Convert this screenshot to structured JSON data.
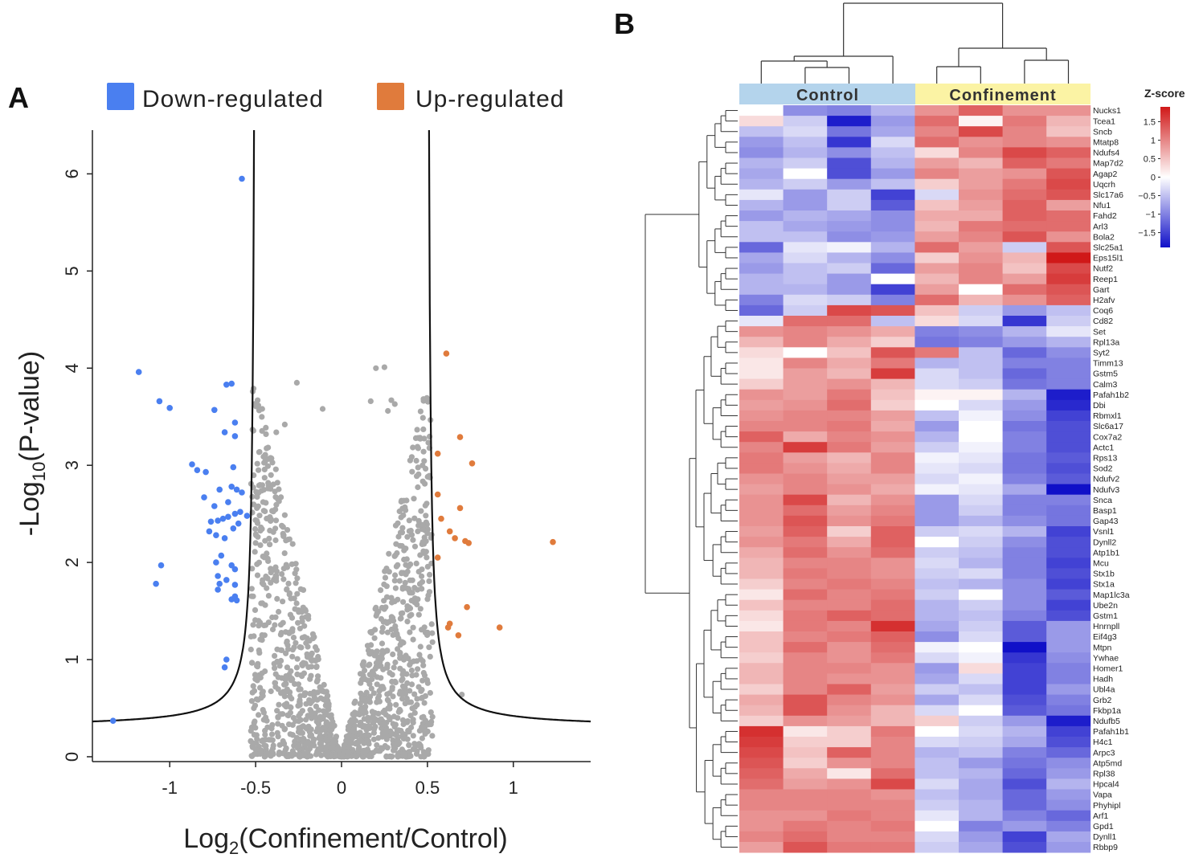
{
  "figure": {
    "panel_a": "A",
    "panel_b": "B"
  },
  "colors": {
    "down": "#4a7ff0",
    "up": "#e07b3c",
    "ns": "#a9a9a9",
    "control_bar": "#b4d4ec",
    "confinement_bar": "#fbf3a4"
  },
  "chart_data": [
    {
      "type": "scatter",
      "subtype": "volcano",
      "xlabel_prefix": "Log",
      "xlabel_sub": "2",
      "xlabel_rest": "(Confinement/Control)",
      "ylabel_prefix": "-Log",
      "ylabel_sub": "10",
      "ylabel_rest": "(P-value)",
      "xlim": [
        -1.45,
        1.45
      ],
      "ylim": [
        -0.05,
        6.45
      ],
      "x_ticks": [
        {
          "v": -1,
          "label": "-1"
        },
        {
          "v": -0.5,
          "label": "-0.5"
        },
        {
          "v": 0,
          "label": "0"
        },
        {
          "v": 0.5,
          "label": "0.5"
        },
        {
          "v": 1,
          "label": "1"
        }
      ],
      "y_ticks": [
        {
          "v": 0,
          "label": "0"
        },
        {
          "v": 1,
          "label": "1"
        },
        {
          "v": 2,
          "label": "2"
        },
        {
          "v": 3,
          "label": "3"
        },
        {
          "v": 4,
          "label": "4"
        },
        {
          "v": 5,
          "label": "5"
        },
        {
          "v": 6,
          "label": "6"
        }
      ],
      "legend": [
        {
          "label": "Down-regulated",
          "color": "#4a7ff0"
        },
        {
          "label": "Up-regulated",
          "color": "#e07b3c"
        }
      ],
      "threshold_curve": {
        "x0": 0.5,
        "c": 0.06,
        "floor": 0.3
      },
      "series": [
        {
          "name": "Down-regulated",
          "color": "#4a7ff0",
          "points": [
            [
              -0.58,
              5.95
            ],
            [
              -1.18,
              3.96
            ],
            [
              -1.06,
              3.66
            ],
            [
              -1.0,
              3.59
            ],
            [
              -0.64,
              3.84
            ],
            [
              -0.67,
              3.83
            ],
            [
              -0.74,
              3.57
            ],
            [
              -0.68,
              3.34
            ],
            [
              -0.62,
              3.44
            ],
            [
              -0.62,
              3.3
            ],
            [
              -0.87,
              3.01
            ],
            [
              -0.84,
              2.95
            ],
            [
              -0.79,
              2.93
            ],
            [
              -0.63,
              2.98
            ],
            [
              -0.71,
              2.75
            ],
            [
              -0.64,
              2.78
            ],
            [
              -0.61,
              2.75
            ],
            [
              -0.66,
              2.62
            ],
            [
              -0.74,
              2.58
            ],
            [
              -0.8,
              2.67
            ],
            [
              -0.58,
              2.72
            ],
            [
              -0.76,
              2.42
            ],
            [
              -0.72,
              2.43
            ],
            [
              -0.69,
              2.45
            ],
            [
              -0.66,
              2.47
            ],
            [
              -0.62,
              2.5
            ],
            [
              -0.59,
              2.52
            ],
            [
              -0.63,
              2.35
            ],
            [
              -0.68,
              2.25
            ],
            [
              -0.73,
              2.28
            ],
            [
              -0.77,
              2.32
            ],
            [
              -0.6,
              2.4
            ],
            [
              -0.55,
              2.48
            ],
            [
              -0.73,
              2.0
            ],
            [
              -0.7,
              2.07
            ],
            [
              -0.64,
              1.97
            ],
            [
              -0.62,
              1.93
            ],
            [
              -0.72,
              1.86
            ],
            [
              -0.67,
              1.82
            ],
            [
              -0.71,
              1.78
            ],
            [
              -0.62,
              1.77
            ],
            [
              -0.61,
              1.61
            ],
            [
              -0.64,
              1.62
            ],
            [
              -0.72,
              1.72
            ],
            [
              -1.05,
              1.97
            ],
            [
              -1.08,
              1.78
            ],
            [
              -0.67,
              1.0
            ],
            [
              -0.68,
              0.92
            ],
            [
              -1.33,
              0.37
            ],
            [
              -0.62,
              1.65
            ]
          ]
        },
        {
          "name": "Up-regulated",
          "color": "#e07b3c",
          "points": [
            [
              0.61,
              4.15
            ],
            [
              0.69,
              3.29
            ],
            [
              0.56,
              3.12
            ],
            [
              0.76,
              3.02
            ],
            [
              0.56,
              2.7
            ],
            [
              0.69,
              2.56
            ],
            [
              0.58,
              2.45
            ],
            [
              0.63,
              2.32
            ],
            [
              0.66,
              2.25
            ],
            [
              0.72,
              2.22
            ],
            [
              0.74,
              2.2
            ],
            [
              0.56,
              2.05
            ],
            [
              0.73,
              1.54
            ],
            [
              0.63,
              1.37
            ],
            [
              0.62,
              1.33
            ],
            [
              0.68,
              1.25
            ],
            [
              0.92,
              1.33
            ],
            [
              1.23,
              2.21
            ]
          ]
        }
      ],
      "ns_count": 1350,
      "ns_seed": 7
    },
    {
      "type": "heatmap",
      "groups": [
        {
          "label": "Control",
          "color": "#b4d4ec",
          "n": 4
        },
        {
          "label": "Confinement",
          "color": "#fbf3a4",
          "n": 4
        }
      ],
      "genes": [
        "Nucks1",
        "Tcea1",
        "Sncb",
        "Mtatp8",
        "Ndufs4",
        "Map7d2",
        "Agap2",
        "Uqcrh",
        "Slc17a6",
        "Nfu1",
        "Fahd2",
        "Arl3",
        "Bola2",
        "Slc25a1",
        "Eps15l1",
        "Nutf2",
        "Reep1",
        "Gart",
        "H2afv",
        "Coq6",
        "Cd82",
        "Set",
        "Rpl13a",
        "Syt2",
        "Timm13",
        "Gstm5",
        "Calm3",
        "Pafah1b2",
        "Dbi",
        "Rbmxl1",
        "Slc6a17",
        "Cox7a2",
        "Actc1",
        "Rps13",
        "Sod2",
        "Ndufv2",
        "Ndufv3",
        "Snca",
        "Basp1",
        "Gap43",
        "Vsnl1",
        "Dynll2",
        "Atp1b1",
        "Mcu",
        "Stx1b",
        "Stx1a",
        "Map1lc3a",
        "Ube2n",
        "Gstm1",
        "Hnrnpll",
        "Eif4g3",
        "Mtpn",
        "Ywhae",
        "Homer1",
        "Hadh",
        "Ubl4a",
        "Grb2",
        "Fkbp1a",
        "Ndufb5",
        "Pafah1b1",
        "H4c1",
        "Arpc3",
        "Atp5md",
        "Rpl38",
        "Hpcal4",
        "Vapa",
        "Phyhipl",
        "Arf1",
        "Gpd1",
        "Dynll1",
        "Rbbp9"
      ],
      "values": [
        [
          0.0,
          -0.9,
          -1.0,
          -0.6,
          0.9,
          1.3,
          0.9,
          0.9
        ],
        [
          0.3,
          -0.4,
          -1.8,
          -0.8,
          1.2,
          0.1,
          1.1,
          0.6
        ],
        [
          -0.5,
          -0.3,
          -1.1,
          -0.7,
          1.0,
          1.5,
          1.0,
          0.5
        ],
        [
          -0.8,
          -0.5,
          -1.6,
          -0.3,
          1.2,
          0.9,
          1.0,
          0.9
        ],
        [
          -0.9,
          -0.6,
          -0.9,
          -0.5,
          0.3,
          1.0,
          1.5,
          1.3
        ],
        [
          -0.6,
          -0.4,
          -1.4,
          -0.6,
          0.8,
          0.6,
          1.3,
          1.1
        ],
        [
          -0.7,
          0.0,
          -1.4,
          -0.8,
          1.0,
          0.8,
          0.9,
          1.4
        ],
        [
          -0.6,
          -0.4,
          -0.8,
          -0.5,
          0.4,
          0.8,
          1.1,
          1.5
        ],
        [
          -0.2,
          -0.8,
          -0.4,
          -1.5,
          -0.3,
          0.9,
          1.2,
          1.4
        ],
        [
          -0.6,
          -0.8,
          -0.4,
          -1.3,
          0.5,
          0.8,
          1.3,
          0.8
        ],
        [
          -0.8,
          -0.6,
          -0.7,
          -0.9,
          0.7,
          0.7,
          1.3,
          1.2
        ],
        [
          -0.5,
          -0.7,
          -0.8,
          -0.9,
          0.6,
          1.1,
          1.2,
          1.2
        ],
        [
          -0.5,
          -0.5,
          -0.9,
          -0.8,
          0.8,
          1.0,
          1.4,
          0.9
        ],
        [
          -1.2,
          -0.2,
          -0.1,
          -0.6,
          1.2,
          0.8,
          -0.4,
          1.4
        ],
        [
          -0.7,
          -0.3,
          -0.6,
          -0.9,
          0.4,
          0.9,
          0.6,
          1.9
        ],
        [
          -0.8,
          -0.5,
          -0.4,
          -1.2,
          0.8,
          1.0,
          0.5,
          1.5
        ],
        [
          -0.6,
          -0.5,
          -0.8,
          0.0,
          0.6,
          1.0,
          0.8,
          1.6
        ],
        [
          -0.6,
          -0.6,
          -0.8,
          -1.5,
          0.8,
          0.0,
          1.2,
          1.4
        ],
        [
          -1.0,
          -0.3,
          -0.4,
          -1.0,
          1.2,
          0.6,
          0.9,
          1.3
        ],
        [
          -1.2,
          -0.4,
          1.5,
          1.4,
          0.5,
          -0.4,
          -0.8,
          -0.5
        ],
        [
          -0.2,
          1.2,
          1.2,
          -0.5,
          0.3,
          -0.3,
          -1.6,
          -0.4
        ],
        [
          0.9,
          1.0,
          0.9,
          0.7,
          -1.0,
          -0.9,
          -0.6,
          -0.2
        ],
        [
          0.6,
          1.0,
          0.7,
          0.4,
          -1.1,
          -1.0,
          -0.8,
          -0.6
        ],
        [
          0.3,
          0.0,
          0.5,
          1.4,
          1.1,
          -0.5,
          -1.2,
          -0.9
        ],
        [
          0.2,
          1.0,
          0.7,
          1.1,
          -0.6,
          -0.5,
          -1.0,
          -1.0
        ],
        [
          0.2,
          0.8,
          0.6,
          1.6,
          -0.3,
          -0.5,
          -1.2,
          -1.0
        ],
        [
          0.4,
          0.8,
          0.9,
          0.6,
          -0.3,
          -0.4,
          -1.1,
          -1.0
        ],
        [
          0.9,
          0.8,
          1.1,
          0.5,
          0.1,
          0.1,
          -0.6,
          -1.8
        ],
        [
          0.8,
          0.9,
          1.2,
          0.4,
          0.0,
          -0.3,
          -0.8,
          -1.7
        ],
        [
          0.9,
          1.0,
          1.0,
          0.8,
          -0.5,
          -0.1,
          -0.9,
          -1.5
        ],
        [
          1.0,
          1.0,
          1.1,
          0.7,
          -0.8,
          0.0,
          -1.1,
          -1.4
        ],
        [
          1.3,
          0.7,
          1.0,
          0.9,
          -0.6,
          0.0,
          -1.0,
          -1.4
        ],
        [
          1.0,
          1.6,
          1.1,
          0.8,
          -0.4,
          -0.1,
          -1.0,
          -1.4
        ],
        [
          1.1,
          0.8,
          0.6,
          1.0,
          -0.1,
          -0.2,
          -1.1,
          -1.3
        ],
        [
          1.1,
          0.9,
          0.7,
          1.0,
          -0.2,
          -0.3,
          -1.1,
          -1.4
        ],
        [
          0.9,
          1.0,
          0.8,
          0.8,
          -0.3,
          -0.1,
          -1.0,
          -1.3
        ],
        [
          0.8,
          1.0,
          0.9,
          0.7,
          -0.1,
          -0.2,
          -0.7,
          -1.9
        ],
        [
          0.9,
          1.5,
          0.6,
          0.9,
          -0.8,
          -0.3,
          -1.0,
          -1.0
        ],
        [
          0.9,
          1.2,
          0.8,
          1.0,
          -0.8,
          -0.4,
          -1.0,
          -1.1
        ],
        [
          0.9,
          1.4,
          0.9,
          1.1,
          -0.8,
          -0.6,
          -0.9,
          -1.1
        ],
        [
          0.8,
          1.3,
          0.4,
          1.3,
          -0.4,
          -0.3,
          -0.6,
          -1.5
        ],
        [
          0.9,
          1.1,
          0.7,
          1.3,
          0.0,
          -0.4,
          -0.9,
          -1.4
        ],
        [
          0.7,
          1.2,
          0.9,
          1.2,
          -0.4,
          -0.5,
          -1.0,
          -1.4
        ],
        [
          0.6,
          1.0,
          1.0,
          0.9,
          -0.3,
          -0.6,
          -1.0,
          -1.5
        ],
        [
          0.6,
          1.1,
          1.0,
          0.9,
          -0.4,
          -0.3,
          -1.0,
          -1.4
        ],
        [
          0.4,
          1.0,
          1.1,
          1.0,
          -0.5,
          -0.6,
          -0.9,
          -1.5
        ],
        [
          0.2,
          1.2,
          1.0,
          1.1,
          -0.4,
          0.0,
          -0.9,
          -1.3
        ],
        [
          0.5,
          1.0,
          1.0,
          1.2,
          -0.6,
          -0.4,
          -0.9,
          -1.5
        ],
        [
          0.3,
          1.1,
          1.3,
          1.2,
          -0.6,
          -0.5,
          -1.0,
          -1.4
        ],
        [
          0.2,
          1.1,
          1.0,
          1.7,
          -0.7,
          -0.4,
          -1.3,
          -0.8
        ],
        [
          0.5,
          1.0,
          1.1,
          1.3,
          -0.9,
          -0.3,
          -1.3,
          -0.8
        ],
        [
          0.5,
          1.2,
          0.9,
          1.2,
          -0.1,
          0.0,
          -1.9,
          -0.8
        ],
        [
          0.4,
          1.0,
          0.9,
          1.1,
          -0.3,
          -0.1,
          -1.6,
          -0.9
        ],
        [
          0.6,
          1.0,
          1.0,
          0.9,
          -0.8,
          0.3,
          -1.5,
          -1.0
        ],
        [
          0.6,
          1.0,
          0.9,
          0.9,
          -0.7,
          -0.3,
          -1.5,
          -1.0
        ],
        [
          0.4,
          1.0,
          1.3,
          0.8,
          -0.4,
          -0.5,
          -1.5,
          -0.8
        ],
        [
          0.7,
          1.4,
          1.0,
          0.9,
          -0.7,
          -0.3,
          -1.4,
          -1.0
        ],
        [
          0.6,
          1.4,
          0.9,
          0.6,
          -0.3,
          0.0,
          -1.3,
          -1.1
        ],
        [
          0.4,
          0.9,
          0.8,
          0.6,
          0.4,
          -0.4,
          -0.8,
          -1.8
        ],
        [
          1.7,
          0.2,
          0.4,
          1.1,
          0.0,
          -0.3,
          -0.6,
          -1.5
        ],
        [
          1.6,
          0.4,
          0.4,
          1.0,
          -0.3,
          -0.4,
          -0.7,
          -1.4
        ],
        [
          1.5,
          0.5,
          1.3,
          1.0,
          -0.6,
          -0.5,
          -1.0,
          -1.2
        ],
        [
          1.4,
          0.4,
          0.9,
          1.0,
          -0.5,
          -0.8,
          -1.1,
          -0.9
        ],
        [
          1.3,
          0.7,
          0.2,
          1.2,
          -0.5,
          -0.6,
          -1.2,
          -0.8
        ],
        [
          1.2,
          0.8,
          0.9,
          1.5,
          -0.3,
          -0.7,
          -1.4,
          -0.6
        ],
        [
          1.0,
          1.0,
          1.0,
          0.9,
          -0.5,
          -0.7,
          -1.2,
          -0.8
        ],
        [
          1.0,
          1.0,
          1.0,
          1.0,
          -0.4,
          -0.6,
          -1.2,
          -0.9
        ],
        [
          0.9,
          0.9,
          1.1,
          1.0,
          -0.2,
          -0.6,
          -1.0,
          -1.2
        ],
        [
          0.9,
          1.1,
          1.0,
          1.1,
          0.0,
          -1.0,
          -0.8,
          -1.0
        ],
        [
          1.0,
          1.2,
          1.0,
          1.0,
          -0.3,
          -0.8,
          -1.5,
          -0.7
        ],
        [
          0.8,
          1.4,
          1.1,
          1.1,
          -0.4,
          -0.7,
          -1.4,
          -0.8
        ]
      ],
      "legend_title": "Z-score",
      "color_ticks": [
        {
          "v": 1.5,
          "label": "1.5"
        },
        {
          "v": 1,
          "label": "1"
        },
        {
          "v": 0.5,
          "label": "0.5"
        },
        {
          "v": 0,
          "label": "0"
        },
        {
          "v": -0.5,
          "label": "−0.5"
        },
        {
          "v": -1,
          "label": "−1"
        },
        {
          "v": -1.5,
          "label": "−1.5"
        }
      ],
      "color_range": [
        -1.9,
        1.9
      ],
      "color_stops": [
        "#1010c8",
        "#ffffff",
        "#d01818"
      ]
    }
  ]
}
